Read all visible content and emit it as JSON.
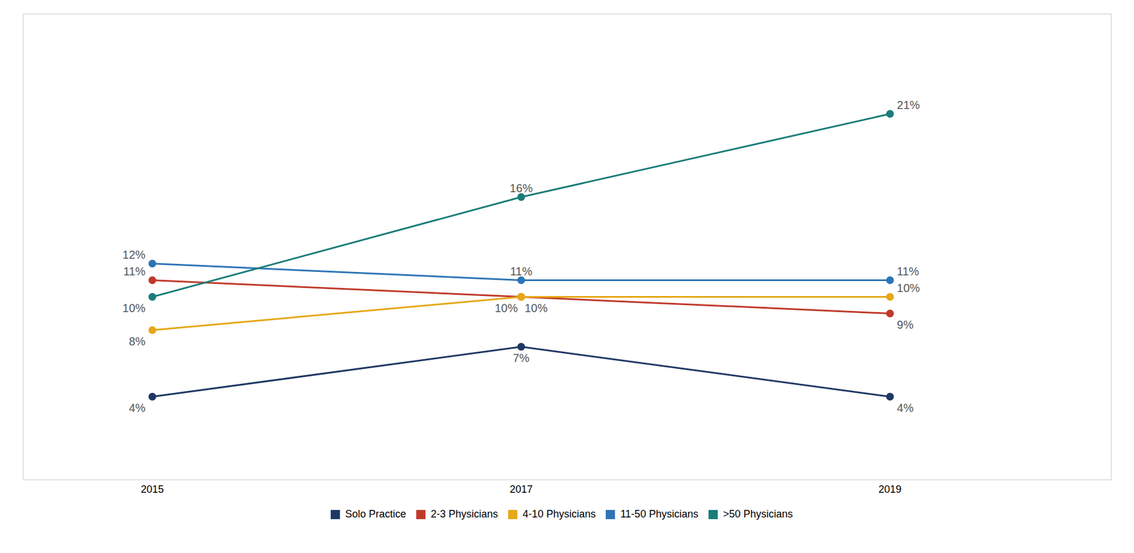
{
  "chart_data": {
    "type": "line",
    "x": [
      2015,
      2017,
      2019
    ],
    "series": [
      {
        "name": "Solo Practice",
        "color": "#1f3864",
        "marker": "circle",
        "values": [
          4,
          7,
          4
        ],
        "value_labels": [
          "4%",
          "7%",
          "4%"
        ]
      },
      {
        "name": "2-3 Physicians",
        "color": "#c0392b",
        "marker": "circle",
        "values": [
          11,
          10,
          9
        ],
        "value_labels": [
          "11%",
          "10%",
          "9%"
        ]
      },
      {
        "name": "4-10 Physicians",
        "color": "#e6a817",
        "marker": "circle",
        "values": [
          8,
          10,
          10
        ],
        "value_labels": [
          "8%",
          "10%",
          "10%"
        ]
      },
      {
        "name": "11-50 Physicians",
        "color": "#2e75b6",
        "marker": "circle",
        "values": [
          12,
          11,
          11
        ],
        "value_labels": [
          "12%",
          "11%",
          "11%"
        ]
      },
      {
        "name": ">50 Physicians",
        "color": "#1a7c79",
        "marker": "circle",
        "values": [
          10,
          16,
          21
        ],
        "value_labels": [
          "10%",
          "16%",
          "21%"
        ]
      }
    ],
    "xlim": [
      2014.3,
      2020.2
    ],
    "xticks": [
      2015,
      2017,
      2019
    ],
    "ylim": [
      -1,
      27
    ],
    "tick_labels": "x",
    "data_labels": true,
    "grid": false,
    "legend": "bottom"
  }
}
